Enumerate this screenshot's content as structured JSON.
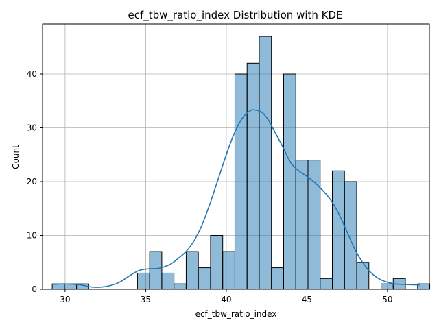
{
  "chart_data": {
    "type": "bar",
    "title": "ecf_tbw_ratio_index Distribution with KDE",
    "xlabel": "ecf_tbw_ratio_index",
    "ylabel": "Count",
    "xlim": [
      28.6,
      52.6
    ],
    "ylim": [
      0,
      49.3
    ],
    "xticks": [
      30,
      35,
      40,
      45,
      50
    ],
    "yticks": [
      0,
      10,
      20,
      30,
      40
    ],
    "grid": true,
    "bins": {
      "start": 29.2,
      "width": 0.7556,
      "counts": [
        1,
        1,
        1,
        0,
        0,
        0,
        0,
        3,
        7,
        3,
        1,
        7,
        4,
        10,
        7,
        40,
        42,
        47,
        4,
        40,
        24,
        24,
        2,
        22,
        20,
        5,
        0,
        1,
        2,
        0,
        1
      ]
    },
    "kde": {
      "x": [
        29.2,
        30,
        31,
        31.7,
        32.5,
        33.3,
        34,
        34.6,
        35.2,
        35.8,
        36.5,
        37,
        37.5,
        38,
        38.5,
        39,
        39.5,
        40,
        40.5,
        41,
        41.5,
        41.8,
        42.2,
        42.6,
        43,
        43.5,
        44,
        44.5,
        45,
        45.5,
        46,
        46.5,
        47,
        47.5,
        48,
        48.5,
        49,
        49.5,
        50,
        50.5,
        51,
        52
      ],
      "y": [
        0.9,
        1.0,
        0.8,
        0.4,
        0.5,
        1.2,
        2.5,
        3.5,
        3.8,
        3.9,
        4.6,
        5.7,
        7.0,
        9.0,
        12.0,
        16.0,
        20.5,
        25.0,
        29.0,
        31.8,
        33.2,
        33.3,
        32.9,
        31.5,
        29.3,
        26.5,
        23.5,
        22.0,
        21.0,
        19.8,
        18.3,
        16.5,
        13.9,
        10.6,
        7.3,
        4.8,
        3.0,
        1.9,
        1.3,
        1.0,
        0.9,
        0.8
      ]
    }
  }
}
